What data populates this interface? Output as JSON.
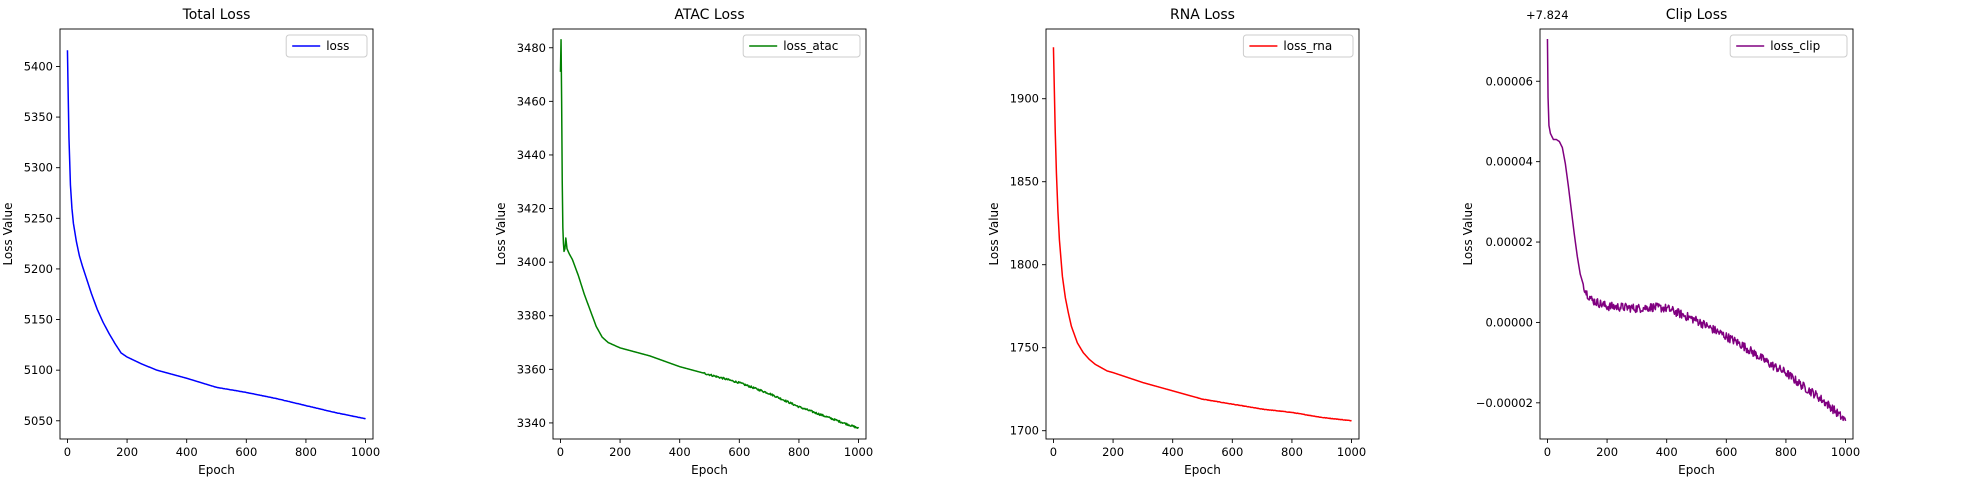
{
  "chart_data": [
    {
      "type": "line",
      "title": "Total Loss",
      "xlabel": "Epoch",
      "ylabel": "Loss Value",
      "xlim": [
        -25,
        1025
      ],
      "ylim": [
        5032,
        5437
      ],
      "xticks": [
        0,
        200,
        400,
        600,
        800,
        1000
      ],
      "yticks": [
        5050,
        5100,
        5150,
        5200,
        5250,
        5300,
        5350,
        5400
      ],
      "ytick_labels": [
        "5050",
        "5100",
        "5150",
        "5200",
        "5250",
        "5300",
        "5350",
        "5400"
      ],
      "offset_text": "",
      "grid": false,
      "legend": "top-right",
      "series": [
        {
          "name": "loss",
          "color": "#0000ff",
          "x": [
            0,
            2,
            5,
            10,
            15,
            20,
            30,
            40,
            50,
            60,
            80,
            100,
            120,
            140,
            160,
            180,
            200,
            250,
            300,
            400,
            500,
            600,
            700,
            800,
            900,
            1000
          ],
          "y": [
            5416,
            5380,
            5330,
            5283,
            5260,
            5245,
            5227,
            5213,
            5203,
            5194,
            5176,
            5160,
            5147,
            5136,
            5126,
            5117,
            5113,
            5106,
            5100,
            5092,
            5083,
            5078,
            5072,
            5065,
            5058,
            5052
          ]
        }
      ]
    },
    {
      "type": "line",
      "title": "ATAC Loss",
      "xlabel": "Epoch",
      "ylabel": "Loss Value",
      "xlim": [
        -25,
        1025
      ],
      "ylim": [
        3334,
        3487
      ],
      "xticks": [
        0,
        200,
        400,
        600,
        800,
        1000
      ],
      "yticks": [
        3340,
        3360,
        3380,
        3400,
        3420,
        3440,
        3460,
        3480
      ],
      "ytick_labels": [
        "3340",
        "3360",
        "3380",
        "3400",
        "3420",
        "3440",
        "3460",
        "3480"
      ],
      "offset_text": "",
      "grid": false,
      "legend": "top-right",
      "series": [
        {
          "name": "loss_atac",
          "color": "#008000",
          "x": [
            0,
            2,
            4,
            6,
            8,
            10,
            12,
            15,
            18,
            22,
            26,
            30,
            40,
            50,
            60,
            80,
            100,
            120,
            140,
            160,
            180,
            200,
            300,
            400,
            500,
            600,
            700,
            800,
            900,
            1000
          ],
          "y": [
            3471,
            3483,
            3460,
            3430,
            3413,
            3407,
            3404,
            3405,
            3409,
            3405,
            3404,
            3403,
            3401,
            3398,
            3395,
            3388,
            3382,
            3376,
            3372,
            3370,
            3369,
            3368,
            3365,
            3361,
            3358,
            3355,
            3351,
            3346,
            3342,
            3338
          ]
        }
      ]
    },
    {
      "type": "line",
      "title": "RNA Loss",
      "xlabel": "Epoch",
      "ylabel": "Loss Value",
      "xlim": [
        -25,
        1025
      ],
      "ylim": [
        1695,
        1942
      ],
      "xticks": [
        0,
        200,
        400,
        600,
        800,
        1000
      ],
      "yticks": [
        1700,
        1750,
        1800,
        1850,
        1900
      ],
      "ytick_labels": [
        "1700",
        "1750",
        "1800",
        "1850",
        "1900"
      ],
      "offset_text": "",
      "grid": false,
      "legend": "top-right",
      "series": [
        {
          "name": "loss_rna",
          "color": "#ff0000",
          "x": [
            0,
            3,
            6,
            10,
            15,
            20,
            30,
            40,
            50,
            60,
            80,
            100,
            120,
            140,
            160,
            180,
            200,
            300,
            400,
            500,
            600,
            700,
            800,
            900,
            1000
          ],
          "y": [
            1931,
            1905,
            1880,
            1855,
            1832,
            1815,
            1793,
            1780,
            1771,
            1763,
            1753,
            1747,
            1743,
            1740,
            1738,
            1736,
            1735,
            1729,
            1724,
            1719,
            1716,
            1713,
            1711,
            1708,
            1706
          ]
        }
      ]
    },
    {
      "type": "line",
      "title": "Clip Loss",
      "xlabel": "Epoch",
      "ylabel": "Loss Value",
      "xlim": [
        -25,
        1025
      ],
      "ylim": [
        -2.9e-05,
        7.3e-05
      ],
      "xticks": [
        0,
        200,
        400,
        600,
        800,
        1000
      ],
      "yticks": [
        -2e-05,
        0,
        2e-05,
        4e-05,
        6e-05
      ],
      "ytick_labels": [
        "−0.00002",
        "0.00000",
        "0.00002",
        "0.00004",
        "0.00006"
      ],
      "offset_text": "+7.824",
      "grid": false,
      "legend": "top-right",
      "series": [
        {
          "name": "loss_clip",
          "color": "#800080",
          "x": [
            0,
            2,
            5,
            10,
            20,
            30,
            40,
            50,
            60,
            70,
            80,
            90,
            100,
            110,
            120,
            130,
            150,
            200,
            250,
            300,
            350,
            400,
            450,
            500,
            550,
            600,
            650,
            700,
            750,
            800,
            850,
            900,
            950,
            1000
          ],
          "y": [
            7.05e-05,
            5.6e-05,
            4.9e-05,
            4.7e-05,
            4.55e-05,
            4.55e-05,
            4.5e-05,
            4.35e-05,
            3.95e-05,
            3.4e-05,
            2.8e-05,
            2.2e-05,
            1.65e-05,
            1.2e-05,
            9.5e-06,
            7.5e-06,
            5.5e-06,
            4e-06,
            3.8e-06,
            3.5e-06,
            3.8e-06,
            3.5e-06,
            2e-06,
            5e-07,
            -1.5e-06,
            -3.5e-06,
            -5.5e-06,
            -8e-06,
            -1.05e-05,
            -1.25e-05,
            -1.55e-05,
            -1.8e-05,
            -2.1e-05,
            -2.45e-05
          ]
        }
      ]
    }
  ]
}
